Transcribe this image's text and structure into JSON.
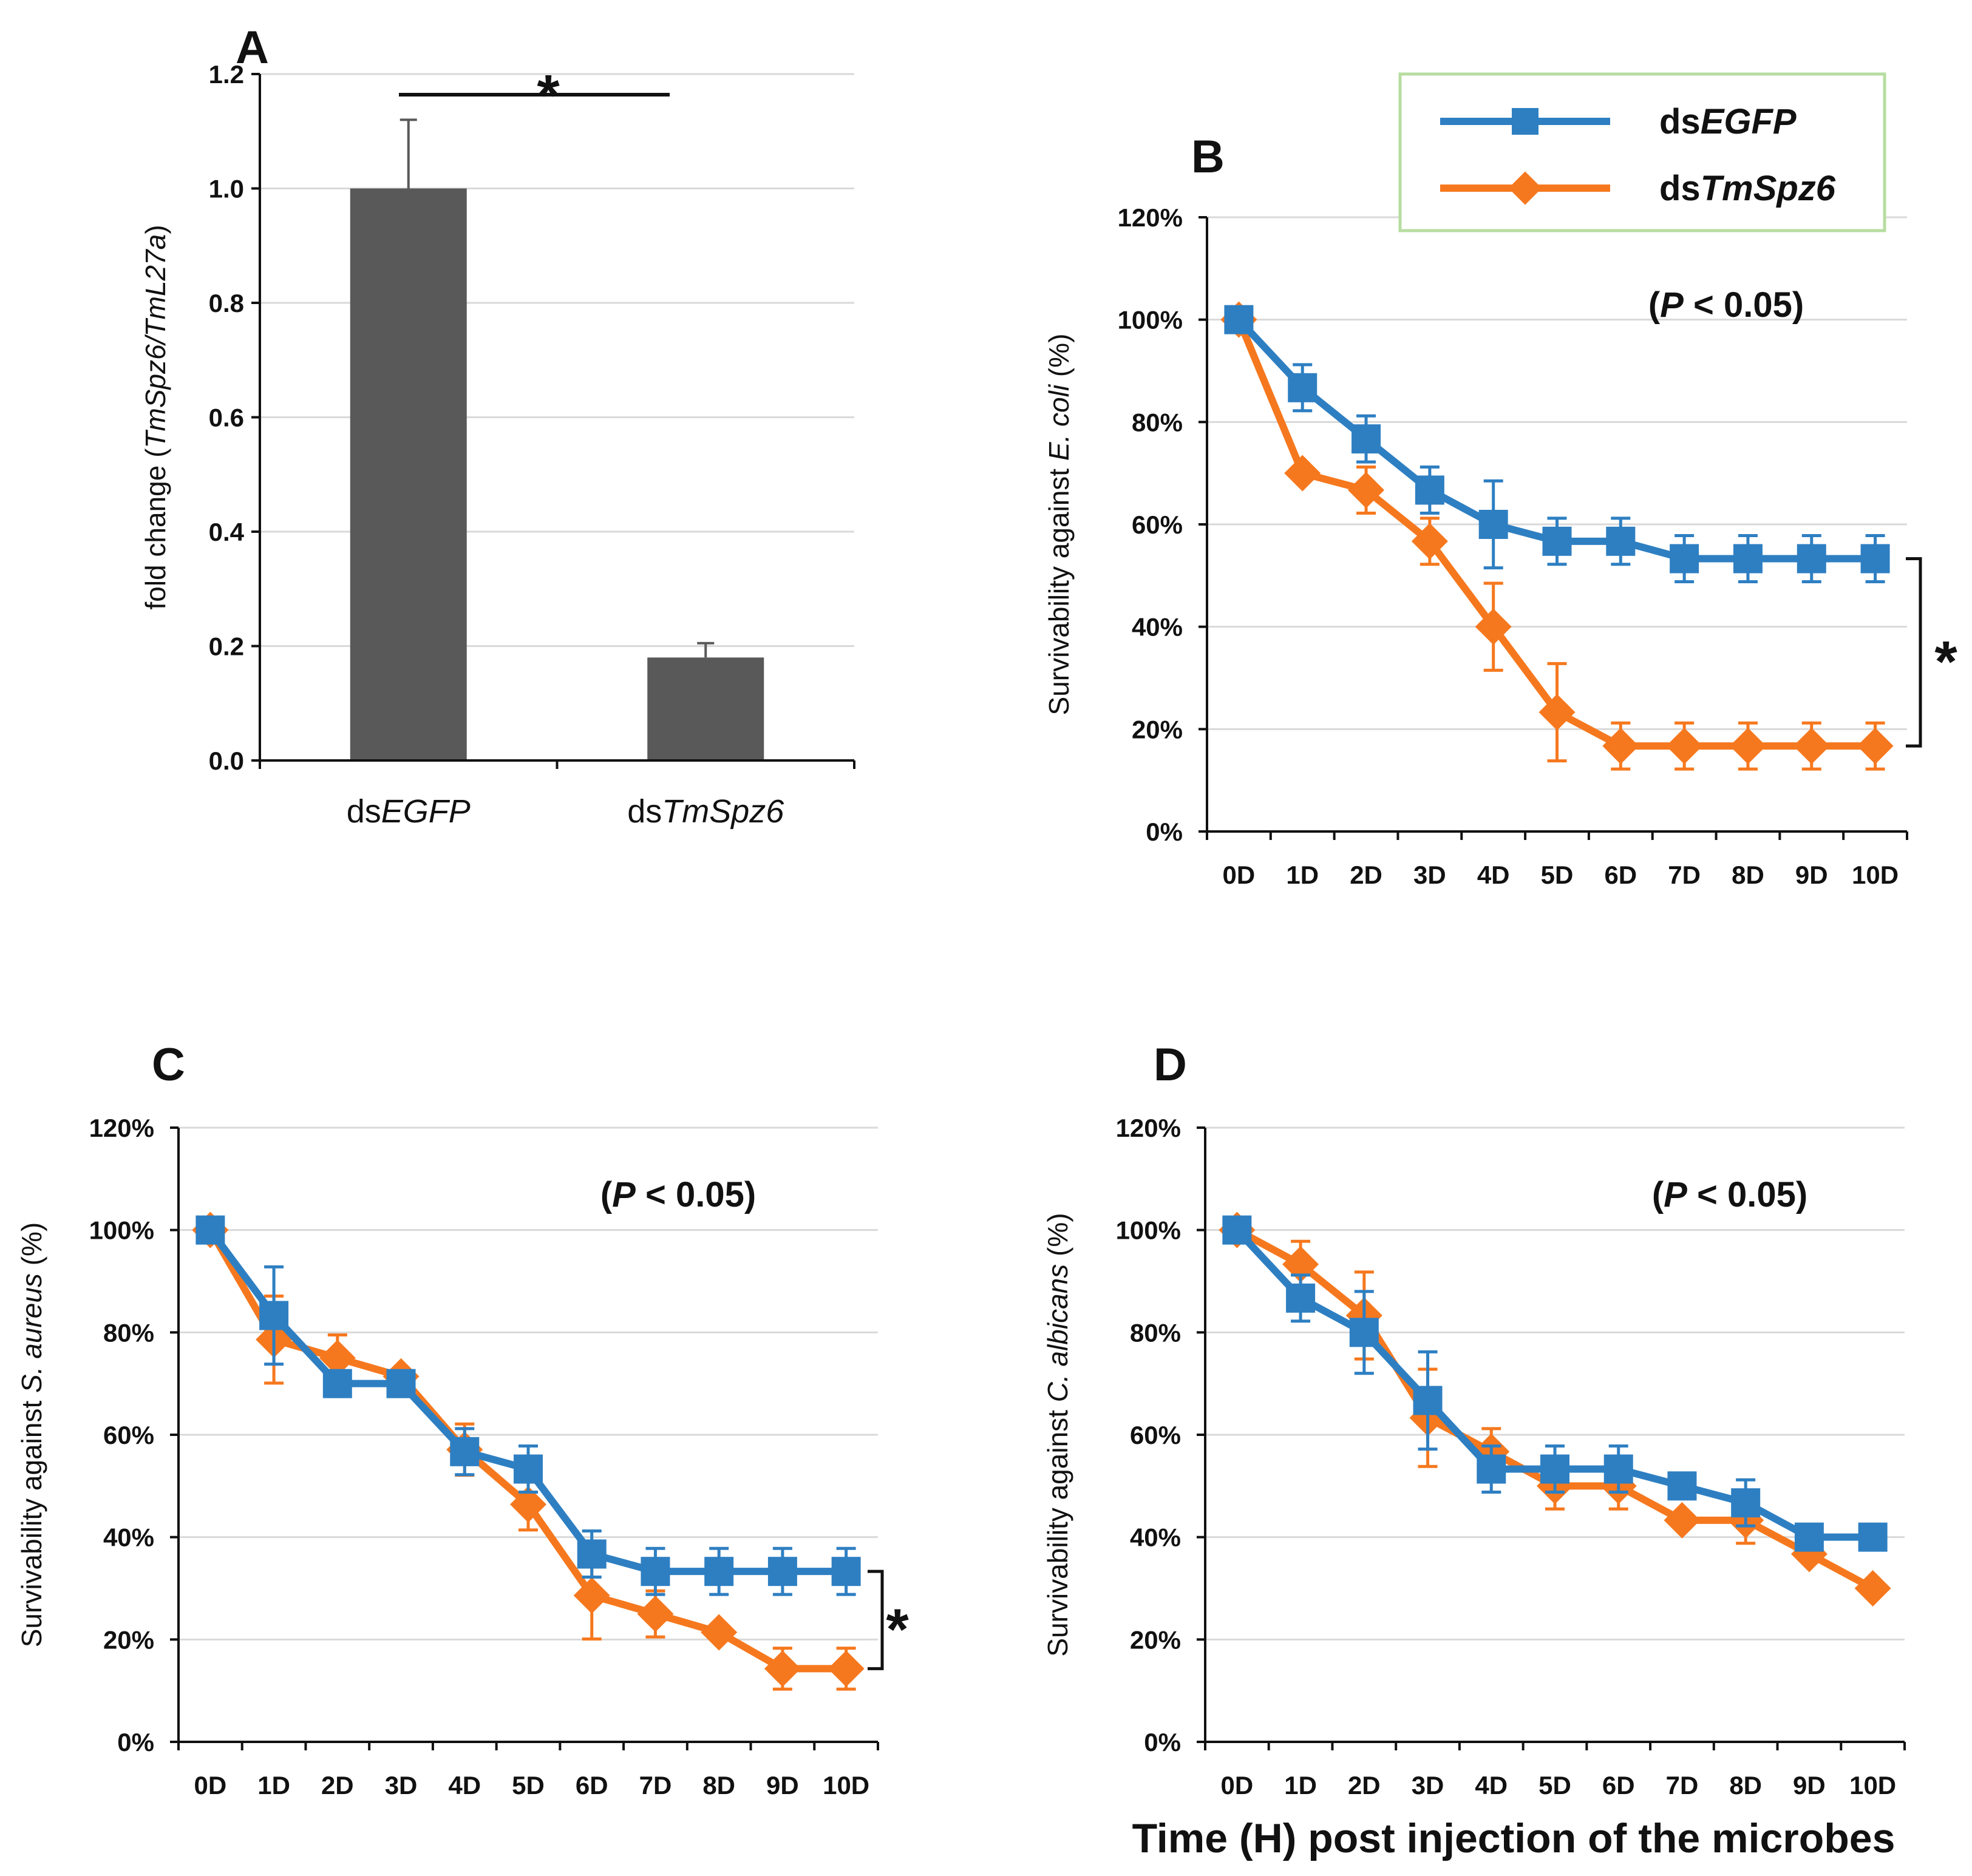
{
  "colors": {
    "blue": "#2E7FC2",
    "orange": "#F6781E",
    "bar": "#595959",
    "grid": "#D9D9D9",
    "legend_border": "#B7DDA0"
  },
  "legend": {
    "series": [
      {
        "prefix": "ds",
        "name": "EGFP",
        "marker": "square",
        "color": "#2E7FC2"
      },
      {
        "prefix": "ds",
        "name": "TmSpz6",
        "marker": "diamond",
        "color": "#F6781E"
      }
    ]
  },
  "x_axis_title": "Time (H) post injection of the microbes",
  "chart_data": [
    {
      "id": "A",
      "type": "bar",
      "panel_label": "A",
      "categories": [
        {
          "prefix": "ds",
          "name": "EGFP"
        },
        {
          "prefix": "ds",
          "name": "TmSpz6"
        }
      ],
      "values": [
        1.0,
        0.18
      ],
      "errors": [
        0.12,
        0.025
      ],
      "ylabel": {
        "pre": "fold change (",
        "italic": "TmSpz6/TmL27a",
        "post": ")"
      },
      "ylim": [
        0,
        1.2
      ],
      "yticks": [
        "0.0",
        "0.2",
        "0.4",
        "0.6",
        "0.8",
        "1.0",
        "1.2"
      ],
      "significance": "*",
      "grid": true
    },
    {
      "id": "B",
      "type": "line",
      "panel_label": "B",
      "x": [
        "0D",
        "1D",
        "2D",
        "3D",
        "4D",
        "5D",
        "6D",
        "7D",
        "8D",
        "9D",
        "10D"
      ],
      "ylim": [
        0,
        120
      ],
      "yticks": [
        "0%",
        "20%",
        "40%",
        "60%",
        "80%",
        "100%",
        "120%"
      ],
      "ylabel": {
        "pre": "Survivability against ",
        "italic": "E. coli",
        "post": " (%)"
      },
      "pvalue": {
        "pre": "(",
        "italic": "P",
        "post": " <  0.05)"
      },
      "significance": "*",
      "series": [
        {
          "name": "dsEGFP",
          "values": [
            100,
            86.7,
            76.7,
            66.7,
            60,
            56.7,
            56.7,
            53.3,
            53.3,
            53.3,
            53.3
          ],
          "errors": [
            0,
            4.5,
            4.5,
            4.5,
            8.5,
            4.5,
            4.5,
            4.5,
            4.5,
            4.5,
            4.5
          ]
        },
        {
          "name": "dsTmSpz6",
          "values": [
            100,
            70,
            66.7,
            56.7,
            40,
            23.3,
            16.7,
            16.7,
            16.7,
            16.7,
            16.7
          ],
          "errors": [
            0,
            0,
            4.5,
            4.5,
            8.5,
            9.5,
            4.5,
            4.5,
            4.5,
            4.5,
            4.5
          ]
        }
      ]
    },
    {
      "id": "C",
      "type": "line",
      "panel_label": "C",
      "x": [
        "0D",
        "1D",
        "2D",
        "3D",
        "4D",
        "5D",
        "6D",
        "7D",
        "8D",
        "9D",
        "10D"
      ],
      "ylim": [
        0,
        120
      ],
      "yticks": [
        "0%",
        "20%",
        "40%",
        "60%",
        "80%",
        "100%",
        "120%"
      ],
      "ylabel": {
        "pre": "Survivability against ",
        "italic": "S. aureus",
        "post": " (%)"
      },
      "pvalue": {
        "pre": "(",
        "italic": "P",
        "post": " <  0.05)"
      },
      "significance": "*",
      "series": [
        {
          "name": "dsEGFP",
          "values": [
            100,
            83.3,
            70,
            70,
            56.7,
            53.3,
            36.7,
            33.3,
            33.3,
            33.3,
            33.3
          ],
          "errors": [
            0,
            9.5,
            0,
            0,
            4.5,
            4.5,
            4.5,
            4.5,
            4.5,
            4.5,
            4.5
          ]
        },
        {
          "name": "dsTmSpz6",
          "values": [
            100,
            78.6,
            75,
            71.4,
            57.1,
            46.4,
            28.6,
            25,
            21.4,
            14.3,
            14.3
          ],
          "errors": [
            0,
            8.5,
            4.5,
            0,
            5,
            5,
            8.5,
            4.5,
            0,
            4,
            4
          ]
        }
      ]
    },
    {
      "id": "D",
      "type": "line",
      "panel_label": "D",
      "x": [
        "0D",
        "1D",
        "2D",
        "3D",
        "4D",
        "5D",
        "6D",
        "7D",
        "8D",
        "9D",
        "10D"
      ],
      "ylim": [
        0,
        120
      ],
      "yticks": [
        "0%",
        "20%",
        "40%",
        "60%",
        "80%",
        "100%",
        "120%"
      ],
      "ylabel": {
        "pre": "Survivability against ",
        "italic": "C. albicans",
        "post": " (%)"
      },
      "pvalue": {
        "pre": "(",
        "italic": "P",
        "post": " <  0.05)"
      },
      "series": [
        {
          "name": "dsEGFP",
          "values": [
            100,
            86.7,
            80,
            66.7,
            53.3,
            53.3,
            53.3,
            50,
            46.7,
            40,
            40
          ],
          "errors": [
            0,
            4.5,
            8,
            9.5,
            4.5,
            4.5,
            4.5,
            0,
            4.5,
            0,
            0
          ]
        },
        {
          "name": "dsTmSpz6",
          "values": [
            100,
            93.3,
            83.3,
            63.3,
            56.7,
            50,
            50,
            43.3,
            43.3,
            36.7,
            30
          ],
          "errors": [
            0,
            4.5,
            8.5,
            9.5,
            4.5,
            4.5,
            4.5,
            0,
            4.5,
            0,
            0
          ]
        }
      ]
    }
  ]
}
